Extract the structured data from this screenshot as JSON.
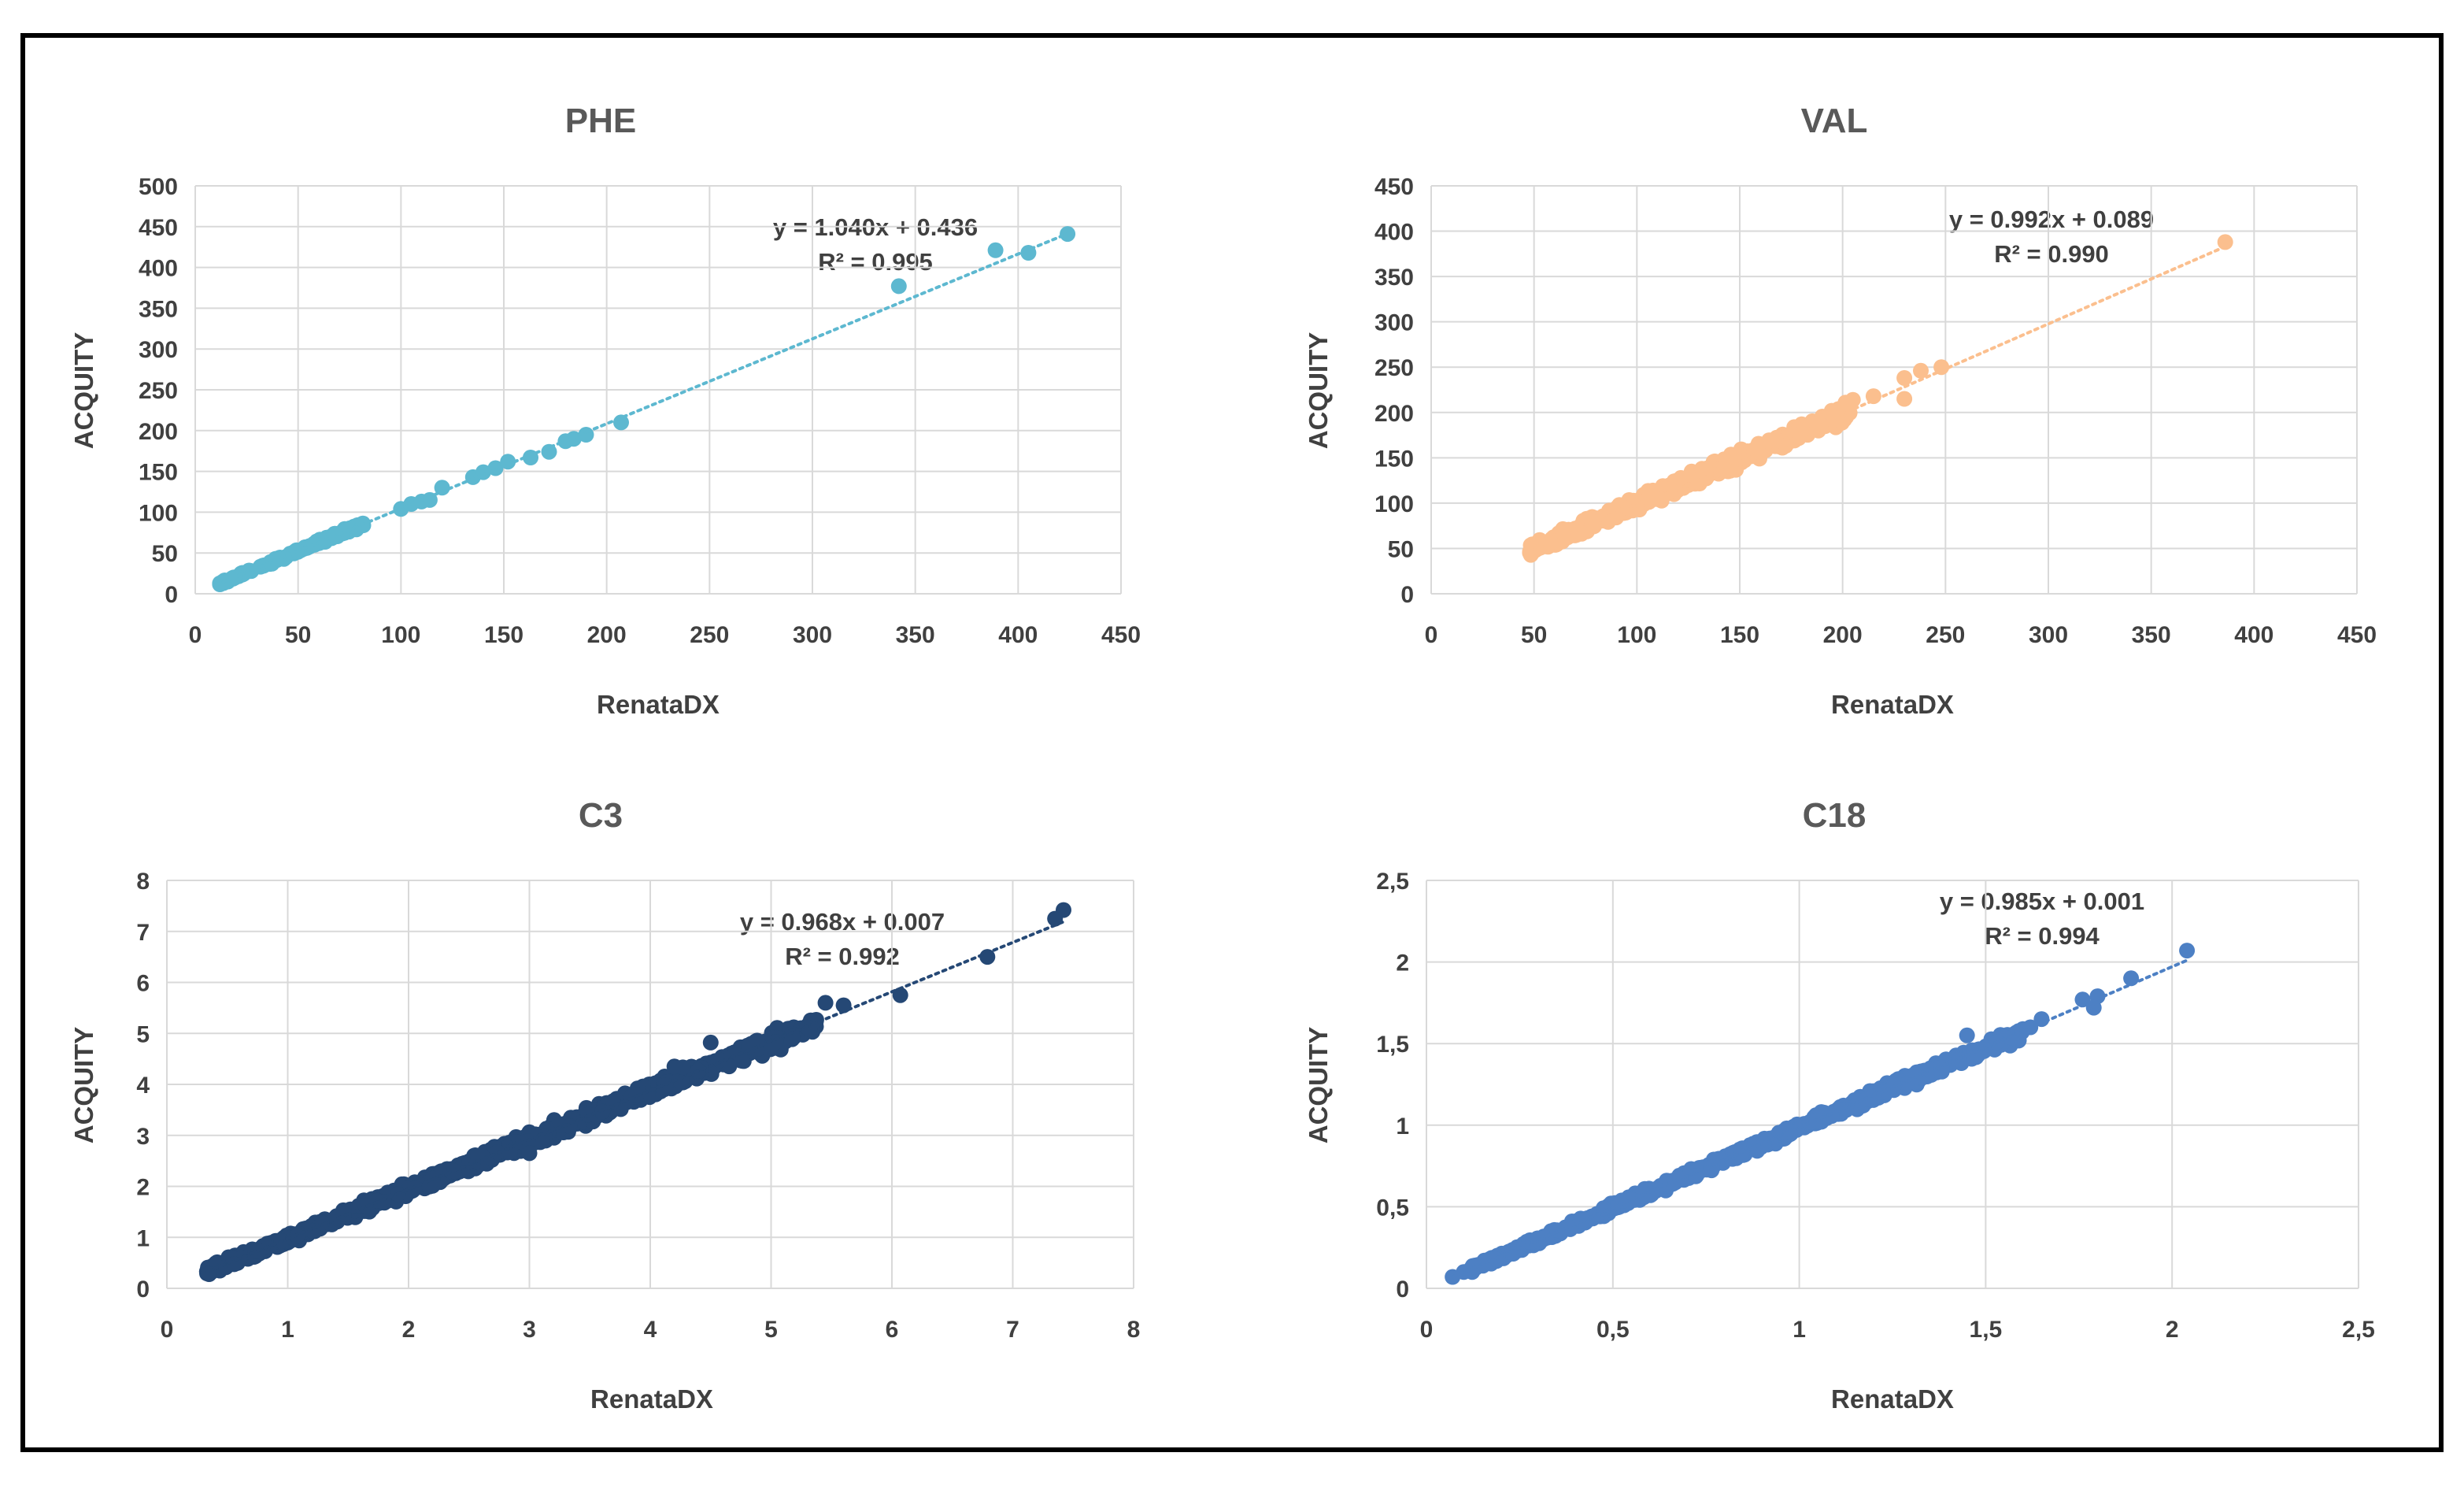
{
  "chart_data": [
    {
      "type": "scatter",
      "title": "PHE",
      "xlabel": "RenataDX",
      "ylabel": "ACQUITY",
      "xlim": [
        0,
        450
      ],
      "ylim": [
        0,
        500
      ],
      "xticks": [
        "0",
        "50",
        "100",
        "150",
        "200",
        "250",
        "300",
        "350",
        "400",
        "450"
      ],
      "yticks": [
        "0",
        "50",
        "100",
        "150",
        "200",
        "250",
        "300",
        "350",
        "400",
        "450",
        "500"
      ],
      "color": "#5db8d0",
      "trend": {
        "slope": 1.04,
        "intercept": 0.436,
        "x_range": [
          10,
          425
        ]
      },
      "equation": "y = 1.040x + 0.436",
      "r2": "R² = 0.995",
      "annotation_anchor": [
        330,
        432
      ],
      "cloud": {
        "x_min": 12,
        "x_max": 82,
        "count": 120,
        "spread": 2
      },
      "points": [
        [
          100,
          104
        ],
        [
          105,
          110
        ],
        [
          110,
          113
        ],
        [
          114,
          115
        ],
        [
          120,
          130
        ],
        [
          135,
          143
        ],
        [
          140,
          149
        ],
        [
          146,
          154
        ],
        [
          152,
          162
        ],
        [
          163,
          167
        ],
        [
          172,
          174
        ],
        [
          180,
          187
        ],
        [
          184,
          190
        ],
        [
          190,
          195
        ],
        [
          207,
          210
        ],
        [
          342,
          377
        ],
        [
          389,
          421
        ],
        [
          405,
          418
        ],
        [
          424,
          441
        ]
      ]
    },
    {
      "type": "scatter",
      "title": "VAL",
      "xlabel": "RenataDX",
      "ylabel": "ACQUITY",
      "xlim": [
        0,
        450
      ],
      "ylim": [
        0,
        450
      ],
      "xticks": [
        "0",
        "50",
        "100",
        "150",
        "200",
        "250",
        "300",
        "350",
        "400",
        "450"
      ],
      "yticks": [
        "0",
        "50",
        "100",
        "150",
        "200",
        "250",
        "300",
        "350",
        "400",
        "450"
      ],
      "color": "#fbbf8e",
      "trend": {
        "slope": 0.992,
        "intercept": 0.089,
        "x_range": [
          48,
          386
        ]
      },
      "equation": "y = 0.992x + 0.089",
      "r2": "R² = 0.990",
      "annotation_anchor": [
        300,
        393
      ],
      "cloud": {
        "x_min": 48,
        "x_max": 205,
        "count": 420,
        "spread": 7
      },
      "points": [
        [
          205,
          214
        ],
        [
          215,
          218
        ],
        [
          230,
          238
        ],
        [
          238,
          246
        ],
        [
          230,
          215
        ],
        [
          248,
          250
        ],
        [
          386,
          388
        ]
      ]
    },
    {
      "type": "scatter",
      "title": "C3",
      "xlabel": "RenataDX",
      "ylabel": "ACQUITY",
      "xlim": [
        0,
        8
      ],
      "ylim": [
        0,
        8
      ],
      "xticks": [
        "0",
        "1",
        "2",
        "3",
        "4",
        "5",
        "6",
        "7",
        "8"
      ],
      "yticks": [
        "0",
        "1",
        "2",
        "3",
        "4",
        "5",
        "6",
        "7",
        "8"
      ],
      "color": "#254875",
      "trend": {
        "slope": 0.968,
        "intercept": 0.007,
        "x_range": [
          0.33,
          7.42
        ]
      },
      "equation": "y = 0.968x + 0.007",
      "r2": "R² = 0.992",
      "annotation_anchor": [
        5.58,
        7.0
      ],
      "cloud": {
        "x_min": 0.33,
        "x_max": 5.4,
        "count": 900,
        "spread": 0.13
      },
      "points": [
        [
          5.45,
          5.6
        ],
        [
          5.6,
          5.55
        ],
        [
          6.07,
          5.75
        ],
        [
          6.79,
          6.5
        ],
        [
          7.35,
          7.25
        ],
        [
          7.42,
          7.42
        ],
        [
          4.5,
          4.82
        ],
        [
          4.2,
          4.35
        ],
        [
          3.0,
          2.65
        ]
      ]
    },
    {
      "type": "scatter",
      "title": "C18",
      "xlabel": "RenataDX",
      "ylabel": "ACQUITY",
      "xlim": [
        0,
        2.5
      ],
      "ylim": [
        0,
        2.5
      ],
      "xticks": [
        "0",
        "0,5",
        "1",
        "1,5",
        "2",
        "2,5"
      ],
      "yticks": [
        "0",
        "0,5",
        "1",
        "1,5",
        "2",
        "2,5"
      ],
      "color": "#4d80c4",
      "trend": {
        "slope": 0.985,
        "intercept": 0.001,
        "x_range": [
          0.07,
          2.04
        ]
      },
      "equation": "y = 0.985x + 0.001",
      "r2": "R² = 0.994",
      "annotation_anchor": [
        1.68,
        2.2
      ],
      "cloud": {
        "x_min": 0.12,
        "x_max": 1.6,
        "count": 650,
        "spread": 0.03
      },
      "points": [
        [
          0.07,
          0.07
        ],
        [
          0.1,
          0.1
        ],
        [
          0.13,
          0.14
        ],
        [
          1.45,
          1.55
        ],
        [
          1.62,
          1.6
        ],
        [
          1.65,
          1.65
        ],
        [
          1.76,
          1.77
        ],
        [
          1.8,
          1.79
        ],
        [
          1.79,
          1.72
        ],
        [
          1.89,
          1.9
        ],
        [
          2.04,
          2.07
        ]
      ]
    }
  ]
}
